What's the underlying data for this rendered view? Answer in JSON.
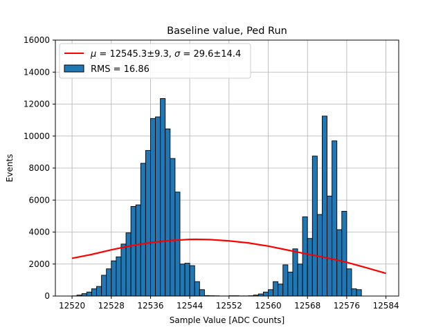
{
  "chart_data": {
    "type": "bar",
    "title": "Baseline value, Ped Run",
    "xlabel": "Sample Value [ADC Counts]",
    "ylabel": "Events",
    "xlim": [
      12516.6,
      12586.6
    ],
    "ylim": [
      0,
      16000
    ],
    "xticks": [
      "12520",
      "12528",
      "12536",
      "12544",
      "12552",
      "12560",
      "12568",
      "12576",
      "12584"
    ],
    "yticks": [
      "0",
      "2000",
      "4000",
      "6000",
      "8000",
      "10000",
      "12000",
      "14000",
      "16000"
    ],
    "grid": true,
    "legend_position": "top-left",
    "colors": {
      "bars": "#1f77b4",
      "bar_edge": "#000000",
      "fit": "#ff0000",
      "grid": "#b0b0b0"
    },
    "series": [
      {
        "name": "RMS = 16.86",
        "kind": "histogram",
        "bin_width": 1,
        "bin_start": [
          12520,
          12521,
          12522,
          12523,
          12524,
          12525,
          12526,
          12527,
          12528,
          12529,
          12530,
          12531,
          12532,
          12533,
          12534,
          12535,
          12536,
          12537,
          12538,
          12539,
          12540,
          12541,
          12542,
          12543,
          12544,
          12545,
          12546,
          12547,
          12548,
          12549,
          12550,
          12551,
          12552,
          12553,
          12554,
          12555,
          12556,
          12557,
          12558,
          12559,
          12560,
          12561,
          12562,
          12563,
          12564,
          12565,
          12566,
          12567,
          12568,
          12569,
          12570,
          12571,
          12572,
          12573,
          12574,
          12575,
          12576,
          12577,
          12578
        ],
        "values": [
          10,
          60,
          150,
          250,
          450,
          600,
          1300,
          1700,
          2200,
          2450,
          3250,
          3950,
          5600,
          5700,
          8300,
          9100,
          11100,
          11200,
          12350,
          10450,
          8600,
          6500,
          2000,
          2050,
          1900,
          900,
          400,
          30,
          20,
          15,
          5,
          5,
          20,
          20,
          10,
          10,
          20,
          60,
          130,
          250,
          400,
          900,
          750,
          1950,
          1500,
          2950,
          2000,
          4950,
          3600,
          8750,
          5100,
          11250,
          6250,
          9700,
          4150,
          5300,
          1700,
          450,
          400
        ]
      },
      {
        "name": "$\\mu = 12545.3\\pm9.3$, $\\sigma = 29.6\\pm14.4$",
        "kind": "fit",
        "x": [
          12520,
          12524,
          12528,
          12532,
          12536,
          12540,
          12544,
          12545.3,
          12548,
          12552,
          12556,
          12560,
          12564,
          12568,
          12572,
          12576,
          12580,
          12584
        ],
        "values": [
          2360,
          2600,
          2890,
          3140,
          3340,
          3470,
          3540,
          3545,
          3530,
          3450,
          3320,
          3120,
          2870,
          2620,
          2380,
          2110,
          1770,
          1420
        ]
      }
    ]
  }
}
